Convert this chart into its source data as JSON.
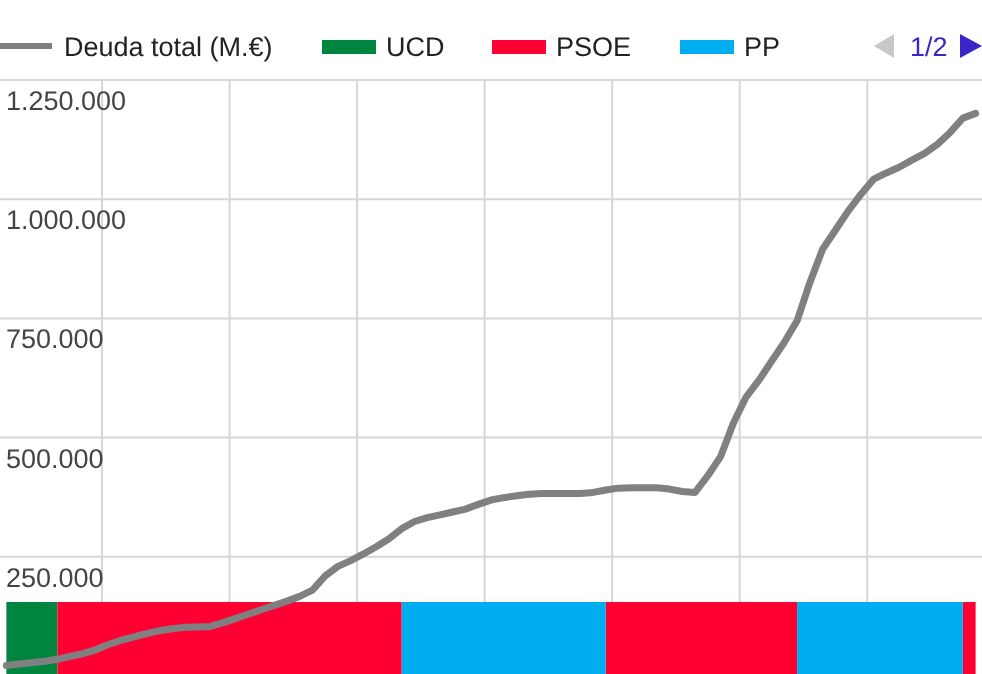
{
  "chart_data": {
    "type": "line",
    "categories": [
      null,
      null,
      null,
      null,
      null,
      null,
      null,
      null,
      null,
      null,
      null,
      null,
      null,
      null,
      null,
      null,
      null,
      null,
      null,
      null,
      null,
      null,
      null,
      null,
      null,
      null,
      null,
      null,
      null,
      null,
      null,
      null,
      null,
      null,
      null,
      null,
      null,
      null,
      null,
      null,
      null,
      null,
      null,
      null,
      null,
      null,
      null,
      null,
      null,
      null,
      null,
      null,
      null,
      null,
      null,
      null,
      null,
      null,
      null,
      null,
      null,
      null,
      null,
      null,
      null,
      null,
      null,
      null,
      null,
      null,
      null,
      null,
      null,
      null,
      null,
      null,
      null
    ],
    "series": [
      {
        "name": "UCD",
        "type": "area",
        "color": "#00853f",
        "values": [
          155000,
          155000,
          155000,
          155000,
          155000,
          null,
          null,
          null,
          null,
          null,
          null,
          null,
          null,
          null,
          null,
          null,
          null,
          null,
          null,
          null,
          null,
          null,
          null,
          null,
          null,
          null,
          null,
          null,
          null,
          null,
          null,
          null,
          null,
          null,
          null,
          null,
          null,
          null,
          null,
          null,
          null,
          null,
          null,
          null,
          null,
          null,
          null,
          null,
          null,
          null,
          null,
          null,
          null,
          null,
          null,
          null,
          null,
          null,
          null,
          null,
          null,
          null,
          null,
          null,
          null,
          null,
          null,
          null,
          null,
          null,
          null,
          null,
          null,
          null,
          null,
          null,
          null
        ]
      },
      {
        "name": "PSOE",
        "type": "area",
        "color": "#ff0033",
        "values": [
          null,
          null,
          null,
          null,
          155000,
          155000,
          155000,
          155000,
          155000,
          155000,
          155000,
          155000,
          155000,
          155000,
          155000,
          155000,
          155000,
          155000,
          155000,
          155000,
          155000,
          155000,
          155000,
          155000,
          155000,
          155000,
          155000,
          155000,
          155000,
          155000,
          155000,
          155000,
          null,
          null,
          null,
          null,
          null,
          null,
          null,
          null,
          null,
          null,
          null,
          null,
          null,
          null,
          null,
          155000,
          155000,
          155000,
          155000,
          155000,
          155000,
          155000,
          155000,
          155000,
          155000,
          155000,
          155000,
          155000,
          155000,
          155000,
          155000,
          null,
          null,
          null,
          null,
          null,
          null,
          null,
          null,
          null,
          null,
          null,
          null,
          155000,
          155000
        ]
      },
      {
        "name": "PP",
        "type": "area",
        "color": "#00adef",
        "values": [
          null,
          null,
          null,
          null,
          null,
          null,
          null,
          null,
          null,
          null,
          null,
          null,
          null,
          null,
          null,
          null,
          null,
          null,
          null,
          null,
          null,
          null,
          null,
          null,
          null,
          null,
          null,
          null,
          null,
          null,
          null,
          155000,
          155000,
          155000,
          155000,
          155000,
          155000,
          155000,
          155000,
          155000,
          155000,
          155000,
          155000,
          155000,
          155000,
          155000,
          155000,
          155000,
          null,
          null,
          null,
          null,
          null,
          null,
          null,
          null,
          null,
          null,
          null,
          null,
          null,
          null,
          155000,
          155000,
          155000,
          155000,
          155000,
          155000,
          155000,
          155000,
          155000,
          155000,
          155000,
          155000,
          155000,
          155000,
          null
        ]
      },
      {
        "name": "Deuda total (M.€)",
        "color": "#808080",
        "values": [
          22000,
          25000,
          28000,
          31000,
          35000,
          41000,
          47000,
          55000,
          66000,
          75000,
          82000,
          89000,
          95000,
          99000,
          102000,
          103000,
          104000,
          112000,
          121000,
          130000,
          139000,
          148000,
          157000,
          167000,
          180000,
          210000,
          230000,
          242000,
          256000,
          271000,
          288000,
          309000,
          324000,
          332000,
          338000,
          344000,
          350000,
          360000,
          369000,
          374000,
          378000,
          381000,
          383000,
          383000,
          383000,
          383000,
          385000,
          390000,
          394000,
          395000,
          395000,
          395000,
          392000,
          387000,
          385000,
          420000,
          460000,
          530000,
          585000,
          620000,
          660000,
          700000,
          745000,
          825000,
          895000,
          935000,
          975000,
          1010000,
          1042000,
          1055000,
          1067000,
          1082000,
          1096000,
          1115000,
          1140000,
          1170000,
          1180000
        ]
      }
    ],
    "ylim": [
      0,
      1250000
    ],
    "yticks": [
      {
        "value": 250000,
        "label": "250.000"
      },
      {
        "value": 500000,
        "label": "500.000"
      },
      {
        "value": 750000,
        "label": "750.000"
      },
      {
        "value": 1000000,
        "label": "1.000.000"
      },
      {
        "value": 1250000,
        "label": "1.250.000"
      }
    ],
    "grid": true,
    "legend": "top",
    "annotations": [
      "1/2"
    ]
  }
}
